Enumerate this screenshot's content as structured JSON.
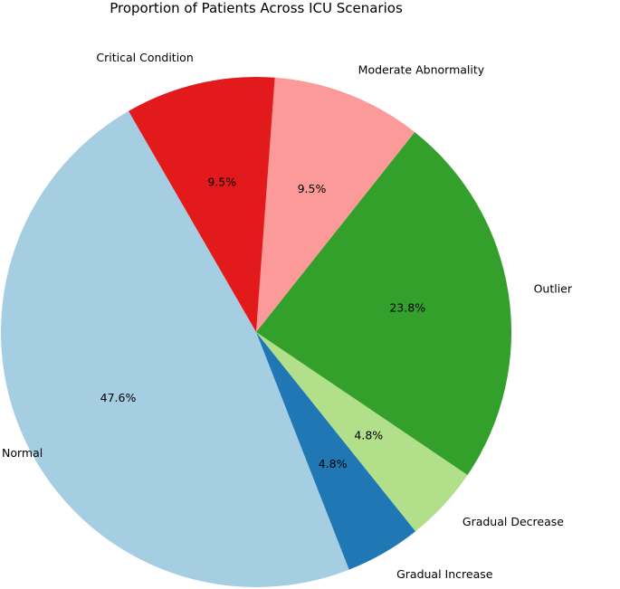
{
  "chart_data": {
    "type": "pie",
    "title": "Proportion of Patients Across ICU Scenarios",
    "start_angle_deg": 120,
    "direction": "counterclockwise",
    "slices": [
      {
        "label": "Normal",
        "value": 47.6,
        "pct_label": "47.6%",
        "color": "#a6cee3"
      },
      {
        "label": "Gradual Increase",
        "value": 4.8,
        "pct_label": "4.8%",
        "color": "#1f78b4"
      },
      {
        "label": "Gradual Decrease",
        "value": 4.8,
        "pct_label": "4.8%",
        "color": "#b2df8a"
      },
      {
        "label": "Outlier",
        "value": 23.8,
        "pct_label": "23.8%",
        "color": "#33a02c"
      },
      {
        "label": "Moderate Abnormality",
        "value": 9.5,
        "pct_label": "9.5%",
        "color": "#fb9a99"
      },
      {
        "label": "Critical Condition",
        "value": 9.5,
        "pct_label": "9.5%",
        "color": "#e31a1c"
      }
    ]
  }
}
